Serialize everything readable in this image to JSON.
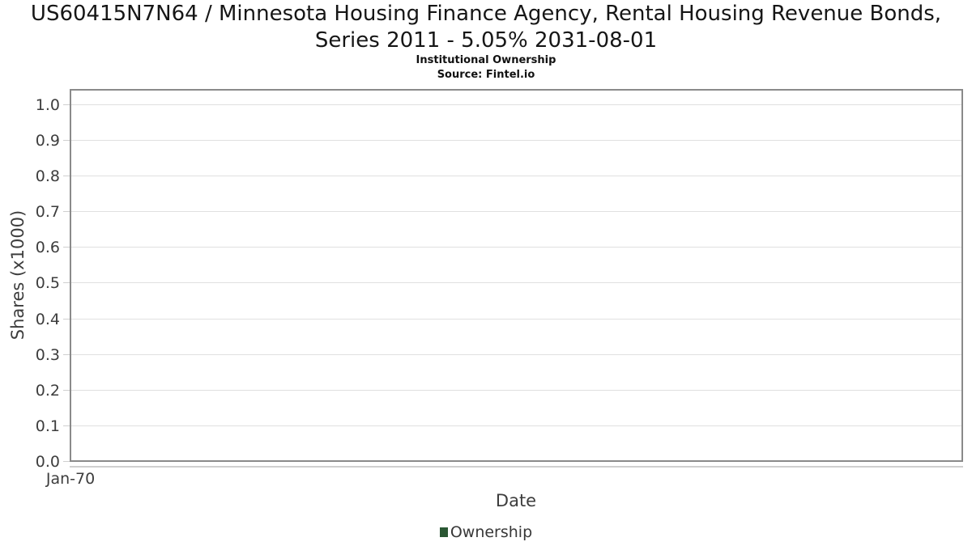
{
  "chart_data": {
    "type": "line",
    "title": "US60415N7N64 / Minnesota Housing Finance Agency, Rental Housing Revenue Bonds, Series 2011 - 5.05% 2031-08-01",
    "subtitle": "Institutional Ownership",
    "source": "Source: Fintel.io",
    "xlabel": "Date",
    "ylabel": "Shares (x1000)",
    "x_ticks": [
      "Jan-70"
    ],
    "y_ticks": [
      "0.0",
      "0.1",
      "0.2",
      "0.3",
      "0.4",
      "0.5",
      "0.6",
      "0.7",
      "0.8",
      "0.9",
      "1.0"
    ],
    "ylim": [
      0,
      1.045
    ],
    "grid": true,
    "legend_position": "bottom",
    "series": [
      {
        "name": "Ownership",
        "color": "#2a5733",
        "values": []
      }
    ],
    "colors": {
      "plot_border": "#8a8a8a",
      "gridline": "#e0e0e0",
      "tick": "#cfcfcf",
      "axis_text": "#3d3d3d",
      "title_text": "#161616"
    }
  }
}
